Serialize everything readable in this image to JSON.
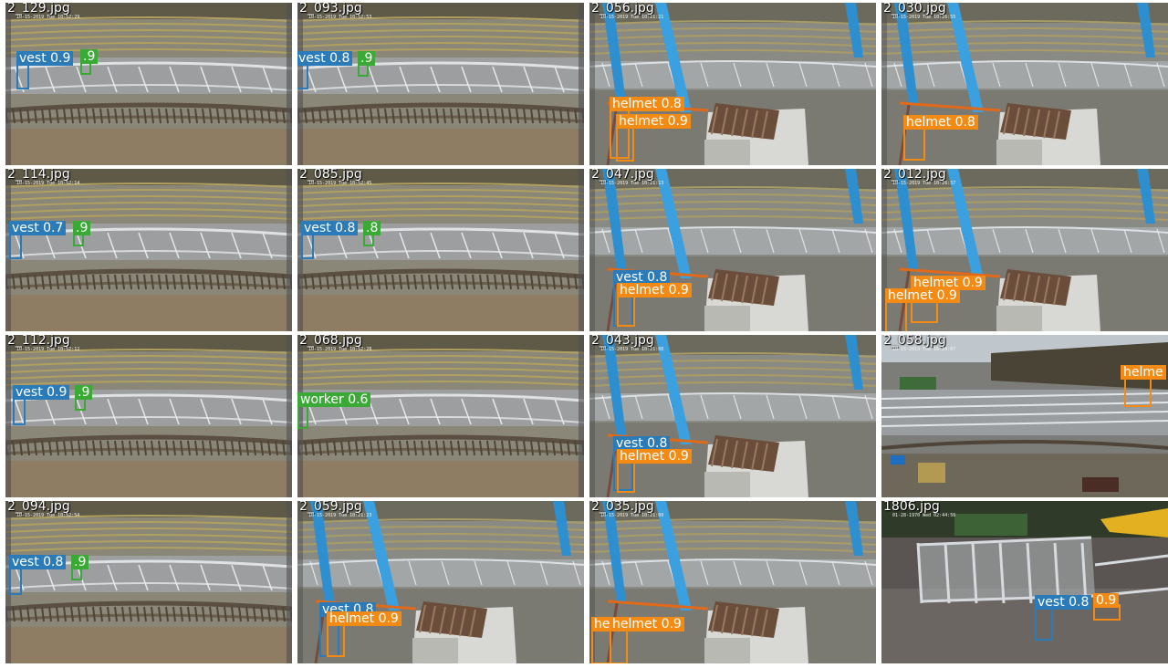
{
  "colors": {
    "vest": "#2b7bb9",
    "helmet": "#f28a14",
    "worker": "#3aa935"
  },
  "tiles": [
    {
      "file": "2_129.jpg",
      "stamp": "10-15-2019 Tue 10:52:29",
      "scene": "track",
      "dets": [
        {
          "label": "vest 0.9",
          "cls": "vest"
        },
        {
          "label": ".9",
          "cls": "worker"
        }
      ]
    },
    {
      "file": "2_093.jpg",
      "stamp": "10-15-2019 Tue 10:52:53",
      "scene": "track",
      "dets": [
        {
          "label": "vest 0.8",
          "cls": "vest"
        },
        {
          "label": ".9",
          "cls": "worker"
        }
      ]
    },
    {
      "file": "2_056.jpg",
      "stamp": "10-15-2019 Tue 10:21:21",
      "scene": "crane",
      "dets": [
        {
          "label": "helmet 0.8",
          "cls": "helmet"
        },
        {
          "label": "helmet 0.9",
          "cls": "helmet"
        }
      ]
    },
    {
      "file": "2_030.jpg",
      "stamp": "10-15-2019 Tue 10:26:55",
      "scene": "crane",
      "dets": [
        {
          "label": "helmet 0.8",
          "cls": "helmet"
        }
      ]
    },
    {
      "file": "2_114.jpg",
      "stamp": "10-15-2019 Tue 10:52:14",
      "scene": "track",
      "dets": [
        {
          "label": "vest 0.7",
          "cls": "vest"
        },
        {
          "label": ".9",
          "cls": "worker"
        }
      ]
    },
    {
      "file": "2_085.jpg",
      "stamp": "10-15-2019 Tue 10:52:45",
      "scene": "track",
      "dets": [
        {
          "label": "vest 0.8",
          "cls": "vest"
        },
        {
          "label": ".8",
          "cls": "worker"
        }
      ]
    },
    {
      "file": "2_047.jpg",
      "stamp": "10-15-2019 Tue 10:21:13",
      "scene": "crane",
      "dets": [
        {
          "label": "vest 0.8",
          "cls": "vest"
        },
        {
          "label": "helmet 0.9",
          "cls": "helmet"
        }
      ]
    },
    {
      "file": "2_012.jpg",
      "stamp": "10-15-2019 Tue 10:26:37",
      "scene": "crane",
      "dets": [
        {
          "label": "helmet 0.9",
          "cls": "helmet"
        },
        {
          "label": "helmet 0.9",
          "cls": "helmet"
        }
      ]
    },
    {
      "file": "2_112.jpg",
      "stamp": "10-15-2019 Tue 10:52:12",
      "scene": "track",
      "dets": [
        {
          "label": "vest 0.9",
          "cls": "vest"
        },
        {
          "label": ".9",
          "cls": "worker"
        }
      ]
    },
    {
      "file": "2_068.jpg",
      "stamp": "10-15-2019 Tue 10:52:28",
      "scene": "track",
      "dets": [
        {
          "label": "worker 0.6",
          "cls": "worker"
        }
      ]
    },
    {
      "file": "2_043.jpg",
      "stamp": "10-15-2019 Tue 10:21:08",
      "scene": "crane",
      "dets": [
        {
          "label": "vest 0.8",
          "cls": "vest"
        },
        {
          "label": "helmet 0.9",
          "cls": "helmet"
        }
      ]
    },
    {
      "file": "2_058.jpg",
      "stamp": "10-15-2019 Tue 16:26:07",
      "scene": "yard",
      "dets": [
        {
          "label": "helme",
          "cls": "helmet"
        }
      ]
    },
    {
      "file": "2_094.jpg",
      "stamp": "10-15-2019 Tue 10:52:54",
      "scene": "track",
      "dets": [
        {
          "label": "vest 0.8",
          "cls": "vest"
        },
        {
          "label": ".9",
          "cls": "worker"
        }
      ]
    },
    {
      "file": "2_059.jpg",
      "stamp": "10-15-2019 Tue 10:21:23",
      "scene": "crane",
      "dets": [
        {
          "label": "vest 0.8",
          "cls": "vest"
        },
        {
          "label": "helmet 0.9",
          "cls": "helmet"
        }
      ]
    },
    {
      "file": "2_035.jpg",
      "stamp": "10-15-2019 Tue 10:21:00",
      "scene": "crane",
      "dets": [
        {
          "label": "helmet 0.8",
          "cls": "helmet"
        },
        {
          "label": "helmet 0.9",
          "cls": "helmet"
        }
      ]
    },
    {
      "file": "1806.jpg",
      "stamp": "01-28-1970 Wed 02:44:56",
      "scene": "frame",
      "dets": [
        {
          "label": "vest 0.8",
          "cls": "vest"
        },
        {
          "label": "0.9",
          "cls": "helmet"
        }
      ]
    }
  ]
}
